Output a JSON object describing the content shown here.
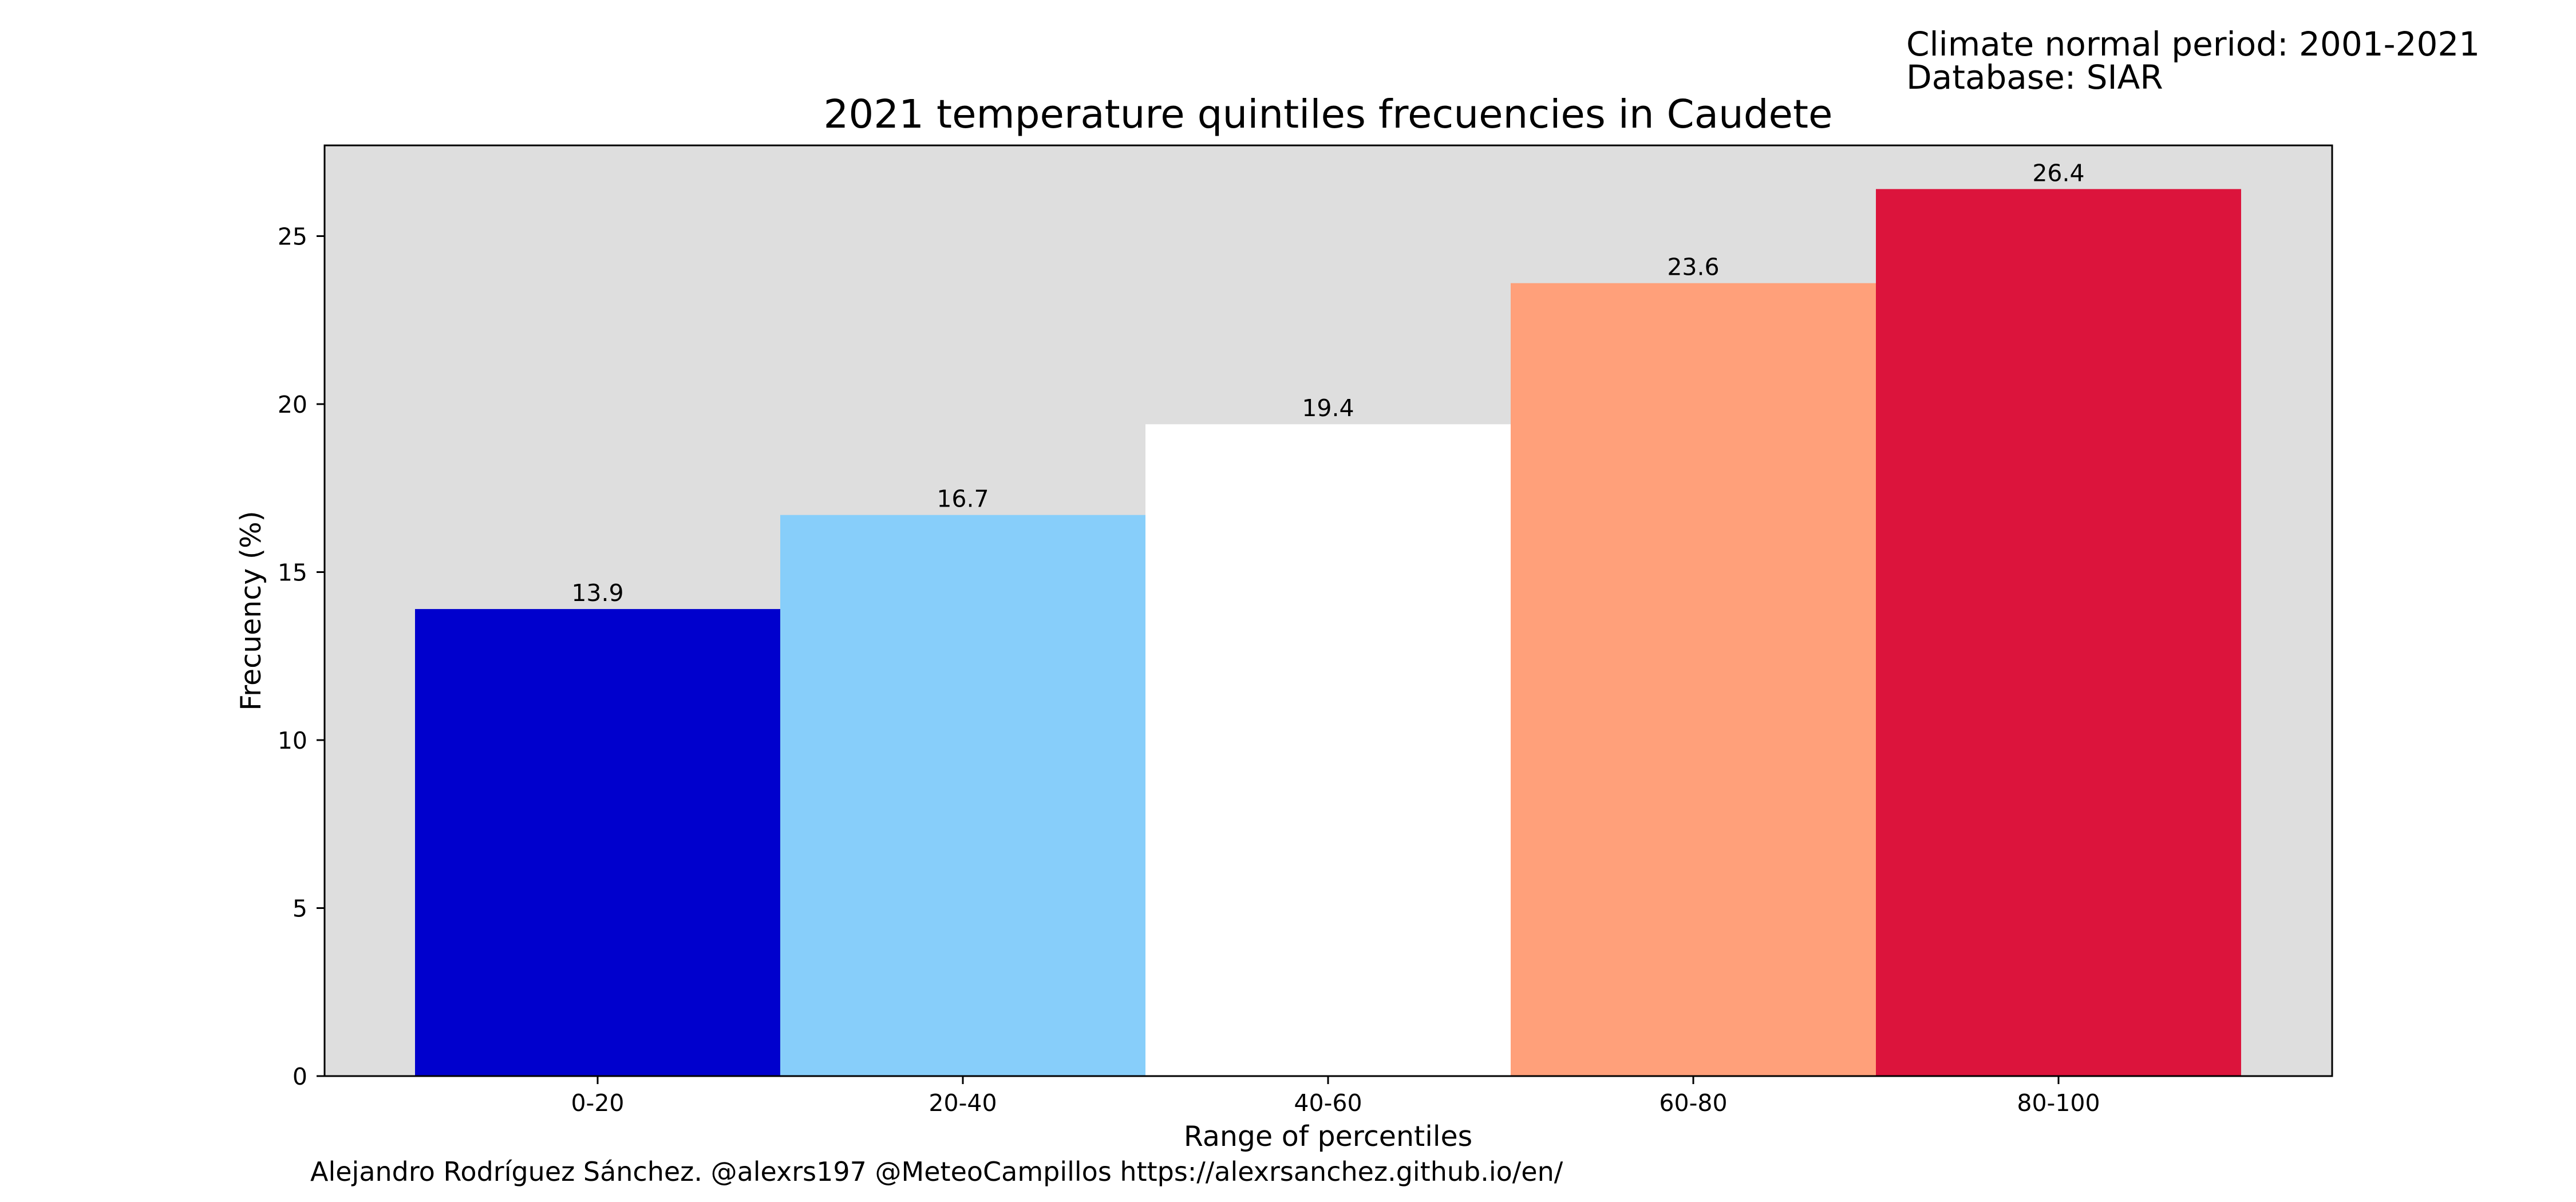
{
  "header": {
    "climate_period": "Climate normal period: 2001-2021",
    "database": "Database: SIAR"
  },
  "footer": {
    "credit": "Alejandro Rodríguez Sánchez. @alexrs197 @MeteoCampillos   https://alexrsanchez.github.io/en/"
  },
  "chart_data": {
    "type": "bar",
    "title": "2021 temperature quintiles frecuencies in Caudete",
    "xlabel": "Range of percentiles",
    "ylabel": "Frecuency (%)",
    "categories": [
      "0-20",
      "20-40",
      "40-60",
      "60-80",
      "80-100"
    ],
    "values": [
      13.9,
      16.7,
      19.4,
      23.6,
      26.4
    ],
    "value_labels": [
      "13.9",
      "16.7",
      "19.4",
      "23.6",
      "26.4"
    ],
    "colors": [
      "#0000cd",
      "#87cefa",
      "#ffffff",
      "#ffa07a",
      "#dc143c"
    ],
    "ylim": [
      0,
      27.7
    ],
    "yticks": [
      0,
      5,
      10,
      15,
      20,
      25
    ],
    "plot_background": "#dedede",
    "grid": false,
    "legend": "none"
  }
}
